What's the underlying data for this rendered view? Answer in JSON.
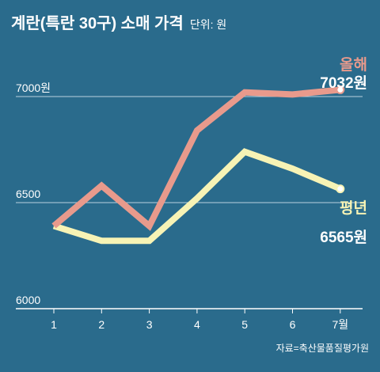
{
  "chart_data": {
    "type": "line",
    "title": "계란(특란 30구) 소매 가격",
    "unit": "단위: 원",
    "categories": [
      "1",
      "2",
      "3",
      "4",
      "5",
      "6",
      "7월"
    ],
    "ylim": [
      6000,
      7000
    ],
    "y_ticks": [
      {
        "value": 6000,
        "label": "6000"
      },
      {
        "value": 6500,
        "label": "6500"
      },
      {
        "value": 7000,
        "label": "7000원"
      }
    ],
    "grid": true,
    "series": [
      {
        "name": "올해",
        "color": "#e89a8c",
        "values": [
          6390,
          6580,
          6390,
          6840,
          7020,
          7010,
          7032
        ],
        "end_label": "7032원"
      },
      {
        "name": "평년",
        "color": "#f7f3b5",
        "values": [
          6390,
          6320,
          6320,
          6520,
          6740,
          6660,
          6565
        ],
        "end_label": "6565원"
      }
    ],
    "source": "자료=축산물품질평가원"
  }
}
